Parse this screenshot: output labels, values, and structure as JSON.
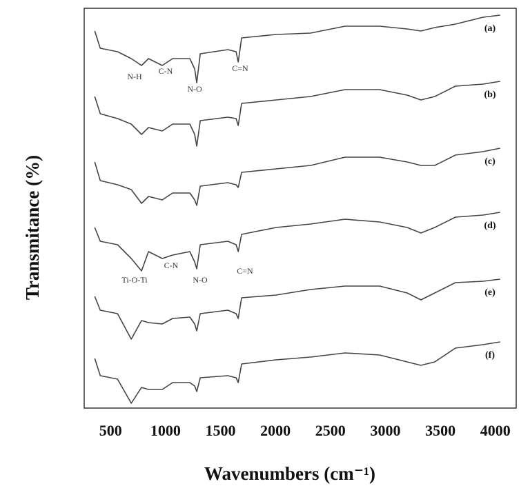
{
  "chart_data": {
    "type": "line",
    "xlabel": "Wavenumbers (cm⁻¹)",
    "ylabel": "Transmitance (%)",
    "x": [
      356,
      406,
      563,
      688,
      782,
      845,
      970,
      1065,
      1221,
      1265,
      1284,
      1316,
      1567,
      1642,
      1661,
      1692,
      2006,
      2319,
      2633,
      2947,
      3198,
      3323,
      3449,
      3637,
      3888,
      4044
    ],
    "xlim": [
      260,
      4190
    ],
    "xticks": [
      500,
      1000,
      1500,
      2000,
      2500,
      3000,
      3500,
      4000
    ],
    "ylim": [
      0,
      58
    ],
    "series": [
      {
        "name": "(a)",
        "color": "#444444",
        "values": [
          54.7,
          52.2,
          51.7,
          50.7,
          49.7,
          50.7,
          49.7,
          50.7,
          50.7,
          49.2,
          47.2,
          51.4,
          52.0,
          51.7,
          50.2,
          53.7,
          54.2,
          54.4,
          55.4,
          55.4,
          55.0,
          54.7,
          55.2,
          55.7,
          56.7,
          57.0
        ]
      },
      {
        "name": "(b)",
        "color": "#444444",
        "values": [
          45.2,
          42.7,
          42.0,
          41.2,
          39.7,
          40.7,
          40.2,
          41.2,
          41.2,
          39.7,
          38.0,
          41.7,
          42.2,
          42.0,
          41.0,
          44.2,
          44.7,
          45.2,
          46.2,
          46.2,
          45.4,
          44.7,
          45.2,
          46.7,
          47.0,
          47.4
        ]
      },
      {
        "name": "(c)",
        "color": "#444444",
        "values": [
          35.7,
          33.0,
          32.4,
          31.7,
          29.7,
          30.7,
          30.2,
          31.2,
          31.2,
          30.2,
          29.4,
          32.2,
          32.7,
          32.4,
          32.0,
          34.2,
          34.7,
          35.2,
          36.4,
          36.4,
          35.7,
          35.2,
          35.2,
          36.7,
          37.2,
          37.7
        ]
      },
      {
        "name": "(d)",
        "color": "#444444",
        "values": [
          26.2,
          24.2,
          23.7,
          21.7,
          19.9,
          22.7,
          21.7,
          22.2,
          22.7,
          21.2,
          20.2,
          23.7,
          24.2,
          23.7,
          22.7,
          25.2,
          26.2,
          26.7,
          27.4,
          27.0,
          26.2,
          25.4,
          26.2,
          27.7,
          28.0,
          28.4
        ]
      },
      {
        "name": "(e)",
        "color": "#444444",
        "values": [
          16.2,
          14.2,
          13.7,
          10.0,
          12.7,
          12.4,
          12.2,
          13.0,
          13.2,
          12.2,
          11.2,
          13.7,
          14.2,
          13.7,
          13.0,
          16.0,
          16.4,
          17.2,
          17.7,
          17.7,
          16.7,
          15.7,
          16.7,
          18.2,
          18.4,
          18.7
        ]
      },
      {
        "name": "(f)",
        "color": "#444444",
        "values": [
          7.2,
          4.7,
          4.2,
          0.7,
          3.0,
          2.7,
          2.7,
          3.7,
          3.7,
          3.2,
          2.4,
          4.4,
          4.7,
          4.4,
          3.7,
          6.4,
          7.0,
          7.4,
          8.0,
          7.7,
          6.7,
          6.2,
          6.7,
          8.7,
          9.2,
          9.6
        ]
      }
    ],
    "annotations": [
      "N-H",
      "C-N",
      "N-O",
      "C=N",
      "Ti-O-Ti",
      "C-N",
      "N-O",
      "C=N"
    ]
  }
}
